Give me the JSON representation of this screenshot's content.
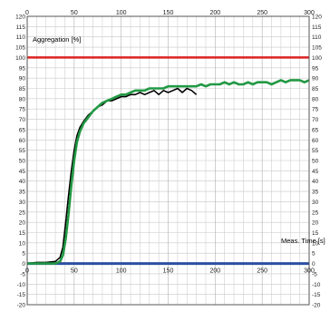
{
  "chart_data": {
    "type": "line",
    "title": "",
    "xlabel": "Meas. Time [s]",
    "ylabel": "Aggregation [%]",
    "xlim": [
      0,
      300
    ],
    "ylim": [
      -20,
      120
    ],
    "x_ticks": [
      0,
      50,
      100,
      150,
      200,
      250,
      300
    ],
    "y_ticks": [
      -20,
      -15,
      -10,
      -5,
      0,
      5,
      10,
      15,
      20,
      25,
      30,
      35,
      40,
      45,
      50,
      55,
      60,
      65,
      70,
      75,
      80,
      85,
      90,
      95,
      100,
      105,
      110,
      115,
      120
    ],
    "grid": true,
    "legend": "none",
    "reference_lines": [
      {
        "axis": "y",
        "value": 100,
        "color": "#dd2222"
      },
      {
        "axis": "y",
        "value": 0,
        "color": "#2c4fa3"
      }
    ],
    "series": [
      {
        "color": "#000000",
        "points": [
          [
            0,
            0
          ],
          [
            10,
            0.5
          ],
          [
            20,
            0.5
          ],
          [
            30,
            1
          ],
          [
            35,
            3
          ],
          [
            38,
            8
          ],
          [
            41,
            20
          ],
          [
            44,
            33
          ],
          [
            47,
            45
          ],
          [
            50,
            55
          ],
          [
            53,
            62
          ],
          [
            56,
            66
          ],
          [
            60,
            69
          ],
          [
            65,
            72
          ],
          [
            70,
            74
          ],
          [
            75,
            76
          ],
          [
            80,
            77
          ],
          [
            85,
            79
          ],
          [
            90,
            79
          ],
          [
            95,
            80
          ],
          [
            100,
            81
          ],
          [
            105,
            81
          ],
          [
            110,
            82
          ],
          [
            115,
            82
          ],
          [
            120,
            83
          ],
          [
            125,
            82
          ],
          [
            130,
            83
          ],
          [
            135,
            84
          ],
          [
            140,
            82
          ],
          [
            145,
            84
          ],
          [
            150,
            83
          ],
          [
            155,
            84
          ],
          [
            160,
            85
          ],
          [
            165,
            83
          ],
          [
            170,
            85
          ],
          [
            175,
            84
          ],
          [
            180,
            82
          ]
        ]
      },
      {
        "color": "#229944",
        "points": [
          [
            0,
            0
          ],
          [
            10,
            0
          ],
          [
            20,
            0
          ],
          [
            30,
            0
          ],
          [
            35,
            1
          ],
          [
            38,
            4
          ],
          [
            41,
            12
          ],
          [
            44,
            24
          ],
          [
            47,
            38
          ],
          [
            50,
            50
          ],
          [
            53,
            59
          ],
          [
            56,
            64
          ],
          [
            60,
            68
          ],
          [
            65,
            71
          ],
          [
            70,
            74
          ],
          [
            75,
            76
          ],
          [
            80,
            78
          ],
          [
            85,
            79
          ],
          [
            90,
            80
          ],
          [
            95,
            81
          ],
          [
            100,
            82
          ],
          [
            105,
            82
          ],
          [
            110,
            83
          ],
          [
            115,
            84
          ],
          [
            120,
            84
          ],
          [
            125,
            84
          ],
          [
            130,
            85
          ],
          [
            135,
            85
          ],
          [
            140,
            85
          ],
          [
            145,
            85
          ],
          [
            150,
            86
          ],
          [
            155,
            86
          ],
          [
            160,
            86
          ],
          [
            165,
            86
          ],
          [
            170,
            86
          ],
          [
            175,
            86
          ],
          [
            180,
            86
          ],
          [
            185,
            87
          ],
          [
            190,
            86
          ],
          [
            195,
            87
          ],
          [
            200,
            87
          ],
          [
            205,
            87
          ],
          [
            210,
            88
          ],
          [
            215,
            87
          ],
          [
            220,
            88
          ],
          [
            225,
            87
          ],
          [
            230,
            87
          ],
          [
            235,
            88
          ],
          [
            240,
            87
          ],
          [
            245,
            88
          ],
          [
            250,
            88
          ],
          [
            255,
            88
          ],
          [
            260,
            87
          ],
          [
            265,
            88
          ],
          [
            270,
            89
          ],
          [
            275,
            88
          ],
          [
            280,
            89
          ],
          [
            285,
            89
          ],
          [
            290,
            89
          ],
          [
            295,
            88
          ],
          [
            300,
            89
          ]
        ]
      }
    ]
  }
}
